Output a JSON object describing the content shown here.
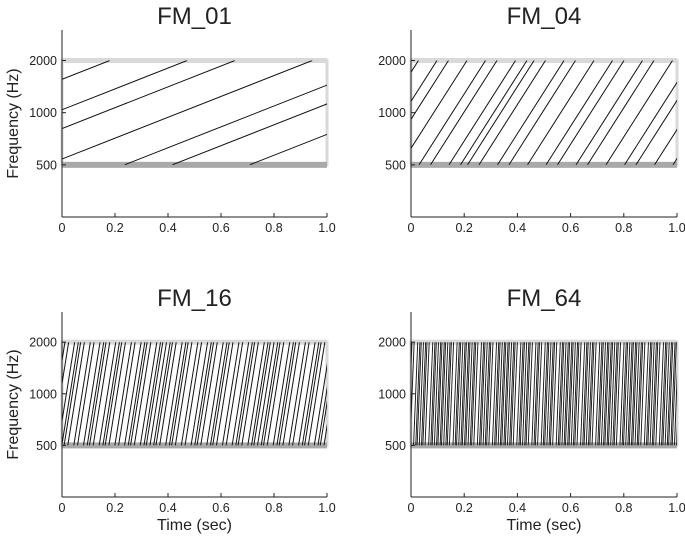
{
  "chart_data": [
    {
      "type": "line",
      "title": "FM_01",
      "sweeps_per_second": 1,
      "sweep_lines": 8,
      "sweep_range_hz": [
        500,
        2000
      ],
      "xlabel": "",
      "ylabel": "Frequency (Hz)",
      "xlim": [
        0,
        1.0
      ],
      "ylim": [
        250,
        3000
      ],
      "y_scale": "log",
      "x_ticks": [
        "0",
        "0.2",
        "0.4",
        "0.6",
        "0.8",
        "1.0"
      ],
      "y_ticks": [
        "500",
        "1000",
        "2000"
      ]
    },
    {
      "type": "line",
      "title": "FM_04",
      "sweeps_per_second": 4,
      "sweep_lines": 22,
      "sweep_range_hz": [
        500,
        2000
      ],
      "xlabel": "",
      "ylabel": "",
      "xlim": [
        0,
        1.0
      ],
      "ylim": [
        250,
        3000
      ],
      "y_scale": "log",
      "x_ticks": [
        "0",
        "0.2",
        "0.4",
        "0.6",
        "0.8",
        "1.0"
      ],
      "y_ticks": [
        "500",
        "1000",
        "2000"
      ]
    },
    {
      "type": "line",
      "title": "FM_16",
      "sweeps_per_second": 16,
      "sweep_lines": 70,
      "sweep_range_hz": [
        500,
        2000
      ],
      "xlabel": "Time (sec)",
      "ylabel": "Frequency (Hz)",
      "xlim": [
        0,
        1.0
      ],
      "ylim": [
        250,
        3000
      ],
      "y_scale": "log",
      "x_ticks": [
        "0",
        "0.2",
        "0.4",
        "0.6",
        "0.8",
        "1.0"
      ],
      "y_ticks": [
        "500",
        "1000",
        "2000"
      ]
    },
    {
      "type": "line",
      "title": "FM_64",
      "sweeps_per_second": 64,
      "sweep_lines": 130,
      "sweep_range_hz": [
        500,
        2000
      ],
      "xlabel": "Time (sec)",
      "ylabel": "",
      "xlim": [
        0,
        1.0
      ],
      "ylim": [
        250,
        3000
      ],
      "y_scale": "log",
      "x_ticks": [
        "0",
        "0.2",
        "0.4",
        "0.6",
        "0.8",
        "1.0"
      ],
      "y_ticks": [
        "500",
        "1000",
        "2000"
      ]
    }
  ],
  "colors": {
    "upper_band": "#d9d9d9",
    "lower_band": "#a9a9a9",
    "sweep": "#111111",
    "axis": "#222222"
  }
}
